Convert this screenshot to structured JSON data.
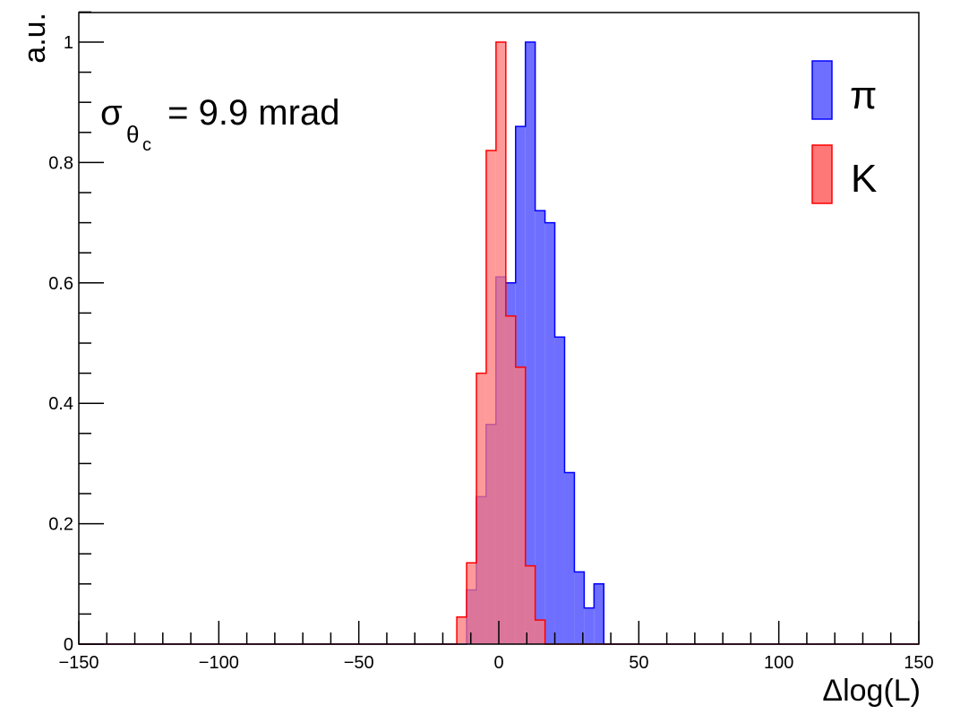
{
  "chart_data": {
    "type": "bar",
    "title": "",
    "xlabel": "Δlog(L)",
    "ylabel": "a.u.",
    "xlim": [
      -150,
      150
    ],
    "ylim": [
      0,
      1.05
    ],
    "x_ticks": [
      -150,
      -100,
      -50,
      0,
      50,
      100,
      150
    ],
    "x_tick_labels": [
      "−150",
      "−100",
      "−50",
      "0",
      "50",
      "100",
      "150"
    ],
    "y_ticks": [
      0,
      0.2,
      0.4,
      0.6,
      0.8,
      1
    ],
    "y_tick_labels": [
      "0",
      "0.2",
      "0.4",
      "0.6",
      "0.8",
      "1"
    ],
    "grid": false,
    "legend_position": "top-right",
    "annotation": {
      "sigma": "σ",
      "theta": "θ",
      "c": "c",
      "text": " = 9.9 mrad"
    },
    "bin_edges": [
      -15,
      -11.5,
      -8,
      -4.5,
      -1,
      2.5,
      6,
      9.5,
      13,
      16.5,
      20,
      23.5,
      27,
      30.5,
      34,
      37.5
    ],
    "series": [
      {
        "name": "π",
        "color": "#0000ff",
        "fill": "#6f6fff",
        "values": [
          0.0,
          0.09,
          0.245,
          0.365,
          0.61,
          0.6,
          0.86,
          1.0,
          0.72,
          0.7,
          0.51,
          0.285,
          0.12,
          0.06,
          0.1
        ]
      },
      {
        "name": "K",
        "color": "#ff0000",
        "fill": "#ff7878",
        "values": [
          0.045,
          0.135,
          0.45,
          0.82,
          1.0,
          0.545,
          0.46,
          0.13,
          0.04,
          0.0,
          0.0,
          0.0,
          0.0,
          0.0,
          0.0
        ]
      }
    ]
  }
}
